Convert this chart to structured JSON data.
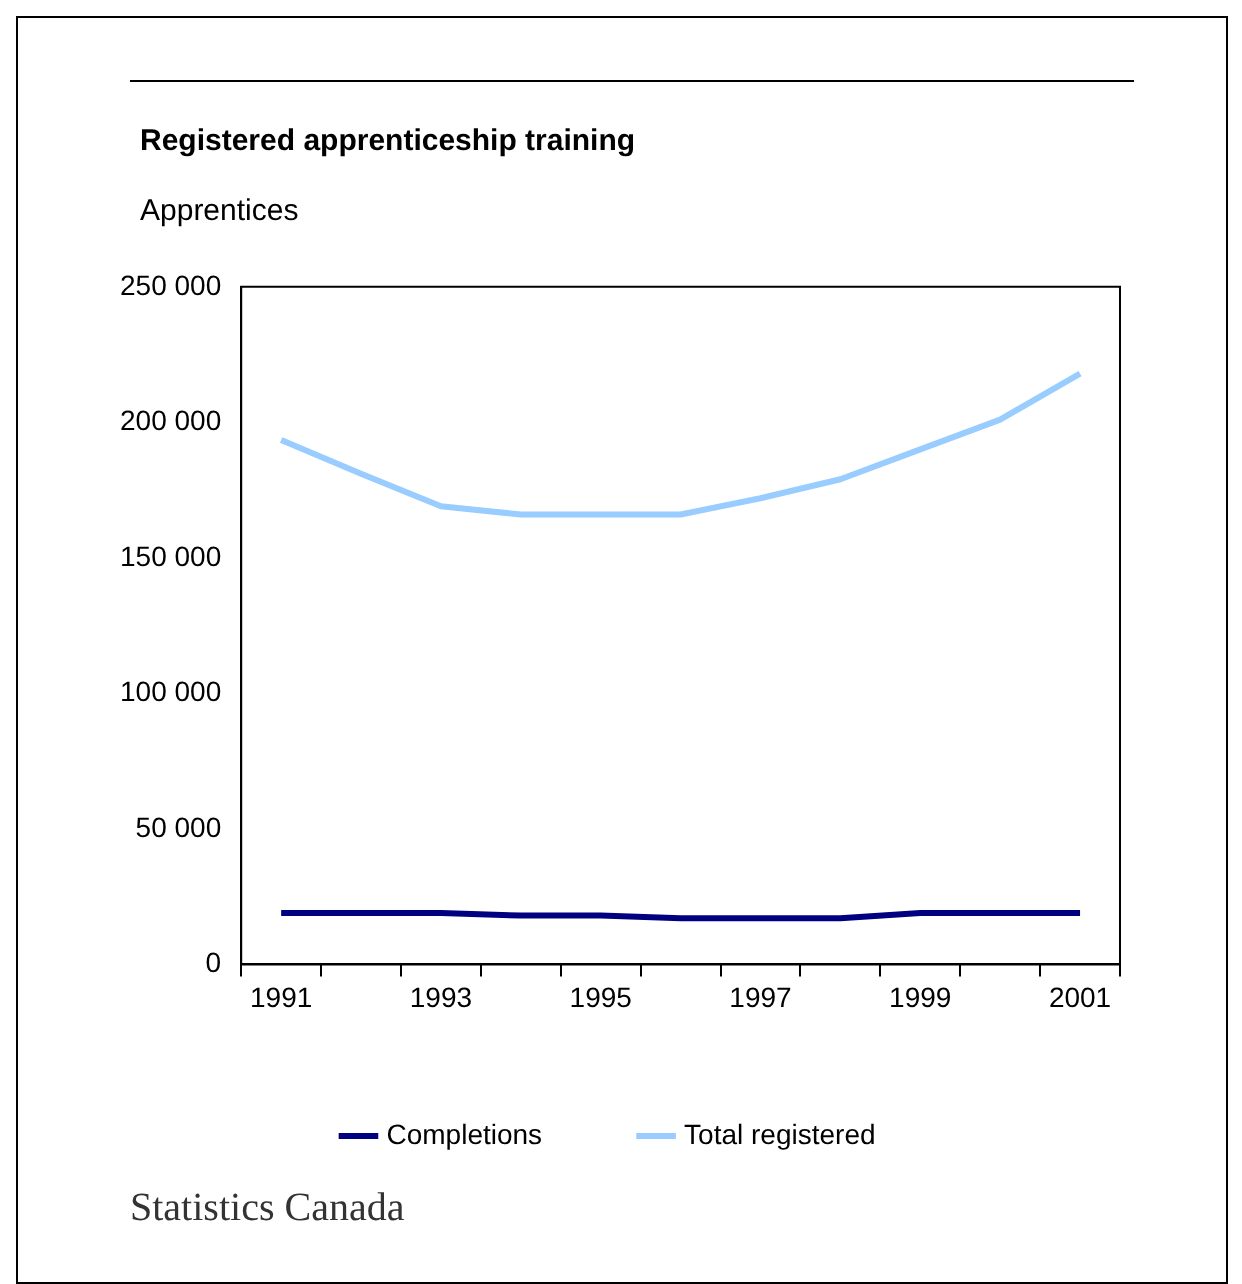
{
  "chart_data": {
    "type": "line",
    "title": "Registered apprenticeship training",
    "ylabel": "Apprentices",
    "categories": [
      "1991",
      null,
      "1993",
      null,
      "1995",
      null,
      "1997",
      null,
      "1999",
      null,
      "2001"
    ],
    "series": [
      {
        "name": "Completions",
        "color": "#000080",
        "values": [
          19000,
          19000,
          19000,
          18000,
          18000,
          17000,
          17000,
          17000,
          19000,
          19000,
          19000
        ]
      },
      {
        "name": "Total registered",
        "color": "#99ccff",
        "values": [
          193500,
          181000,
          169000,
          166000,
          166000,
          166000,
          172000,
          179000,
          190000,
          201000,
          218000
        ]
      }
    ],
    "ylim": [
      0,
      250000
    ],
    "yticks": [
      {
        "value": 0,
        "label": "0"
      },
      {
        "value": 50000,
        "label": "50 000"
      },
      {
        "value": 100000,
        "label": "100 000"
      },
      {
        "value": 150000,
        "label": "150 000"
      },
      {
        "value": 200000,
        "label": "200 000"
      },
      {
        "value": 250000,
        "label": "250 000"
      }
    ],
    "grid": false,
    "legend": "bottom",
    "marker": "none",
    "line_style": "solid",
    "annotations": [
      "Statistics Canada"
    ]
  }
}
